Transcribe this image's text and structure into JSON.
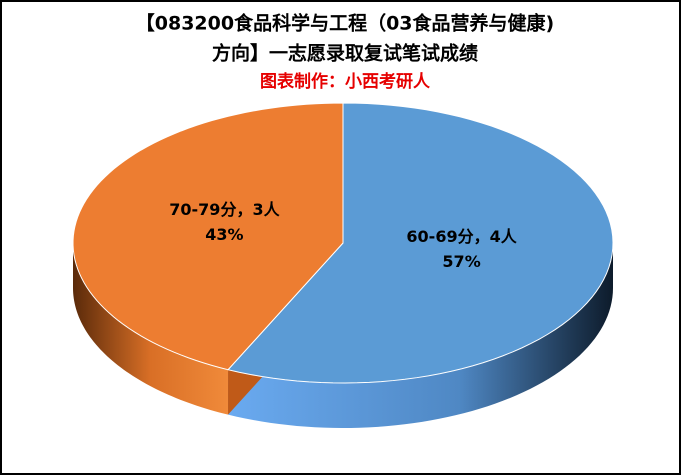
{
  "chart_data": {
    "type": "pie",
    "title": [
      "【083200食品科学与工程（03食品营养与健康)",
      "方向】一志愿录取复试笔试成绩"
    ],
    "subtitle": "图表制作：小西考研人",
    "categories": [
      "60-69分，4人",
      "70-79分，3人"
    ],
    "values": [
      57,
      43
    ],
    "value_labels": [
      "57%",
      "43%"
    ],
    "colors": [
      "#5b9bd5",
      "#ed7d31"
    ],
    "start_angle": 0,
    "direction": "clockwise"
  }
}
